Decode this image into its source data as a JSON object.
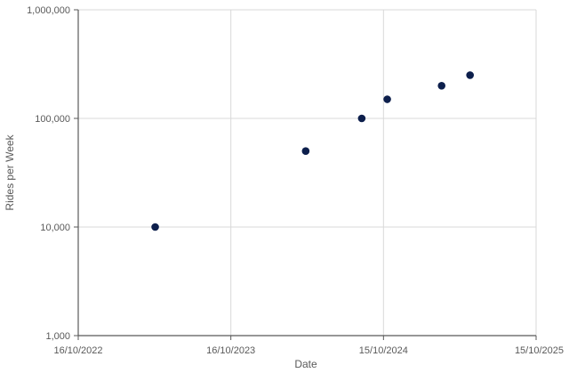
{
  "chart_data": {
    "type": "scatter",
    "title": "",
    "xlabel": "Date",
    "ylabel": "Rides per Week",
    "x_scale": "date",
    "y_scale": "log",
    "xlim": [
      "2022-10-16",
      "2025-10-15"
    ],
    "ylim": [
      1000,
      1000000
    ],
    "x_ticks": [
      "2022-10-16",
      "2023-10-16",
      "2024-10-15",
      "2025-10-15"
    ],
    "x_tick_labels": [
      "16/10/2022",
      "16/10/2023",
      "15/10/2024",
      "15/10/2025"
    ],
    "y_ticks": [
      1000,
      10000,
      100000,
      1000000
    ],
    "y_tick_labels": [
      "1,000",
      "10,000",
      "100,000",
      "1,000,000"
    ],
    "grid": true,
    "legend": "none",
    "marker_color": "#0d1f4c",
    "series": [
      {
        "x": [
          "2023-04-18",
          "2024-04-12",
          "2024-08-24",
          "2024-10-24",
          "2025-03-03",
          "2025-05-10"
        ],
        "y": [
          10000,
          50000,
          100000,
          150000,
          200000,
          250000
        ]
      }
    ]
  }
}
